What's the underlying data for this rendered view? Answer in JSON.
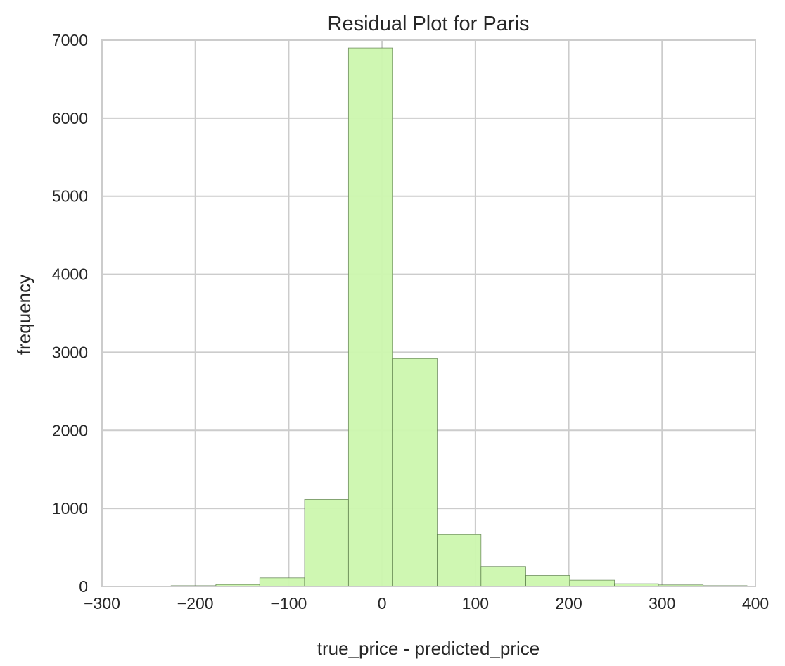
{
  "chart_data": {
    "type": "bar",
    "title": "Residual Plot for Paris",
    "xlabel": "true_price - predicted_price",
    "ylabel": "frequency",
    "xlim": [
      -300,
      400
    ],
    "ylim": [
      0,
      7000
    ],
    "x_ticks": [
      "−300",
      "−200",
      "−100",
      "0",
      "100",
      "200",
      "300",
      "400"
    ],
    "x_tick_values": [
      -300,
      -200,
      -100,
      0,
      100,
      200,
      300,
      400
    ],
    "y_ticks": [
      "0",
      "1000",
      "2000",
      "3000",
      "4000",
      "5000",
      "6000",
      "7000"
    ],
    "y_tick_values": [
      0,
      1000,
      2000,
      3000,
      4000,
      5000,
      6000,
      7000
    ],
    "grid": true,
    "bar_color": "#ccf7ae",
    "bar_edge_color": "#4a6b3a",
    "bins": [
      {
        "x0": -273,
        "x1": -226,
        "count": 2
      },
      {
        "x0": -226,
        "x1": -178,
        "count": 10
      },
      {
        "x0": -178,
        "x1": -131,
        "count": 25
      },
      {
        "x0": -131,
        "x1": -83,
        "count": 110
      },
      {
        "x0": -83,
        "x1": -36,
        "count": 1115
      },
      {
        "x0": -36,
        "x1": 11,
        "count": 6900
      },
      {
        "x0": 11,
        "x1": 59,
        "count": 2920
      },
      {
        "x0": 59,
        "x1": 106,
        "count": 665
      },
      {
        "x0": 106,
        "x1": 154,
        "count": 255
      },
      {
        "x0": 154,
        "x1": 201,
        "count": 140
      },
      {
        "x0": 201,
        "x1": 249,
        "count": 80
      },
      {
        "x0": 249,
        "x1": 296,
        "count": 35
      },
      {
        "x0": 296,
        "x1": 344,
        "count": 20
      },
      {
        "x0": 344,
        "x1": 391,
        "count": 10
      }
    ]
  }
}
